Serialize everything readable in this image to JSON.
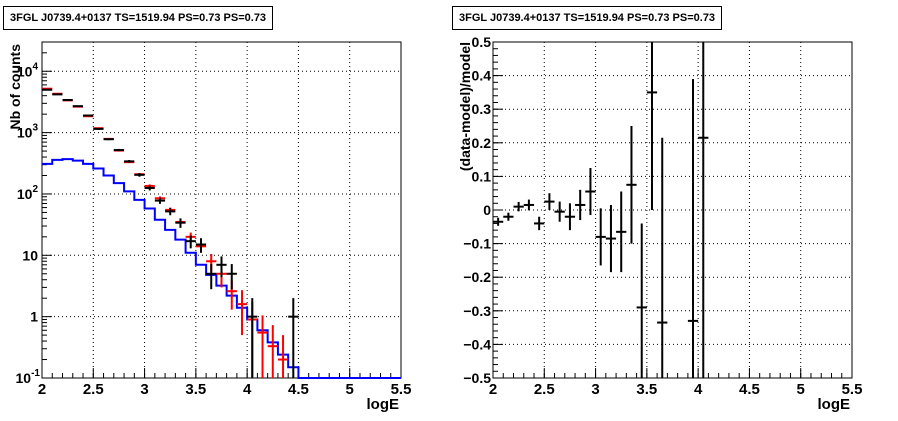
{
  "chart_data": [
    {
      "type": "histogram",
      "title": "3FGL J0739.4+0137 TS=1519.94 PS=0.73 PS=0.73",
      "xlabel": "logE",
      "ylabel": "Nb of counts",
      "xlim": [
        2,
        5.5
      ],
      "ylim": [
        0.1,
        30000
      ],
      "yscale": "log",
      "grid": true,
      "x_ticks": [
        "2",
        "2.5",
        "3",
        "3.5",
        "4",
        "4.5",
        "5",
        "5.5"
      ],
      "y_ticks": [
        {
          "v": 0.1,
          "base": "10",
          "exp": "-1"
        },
        {
          "v": 1,
          "base": "1",
          "exp": ""
        },
        {
          "v": 10,
          "base": "10",
          "exp": ""
        },
        {
          "v": 100,
          "base": "10",
          "exp": "2"
        },
        {
          "v": 1000,
          "base": "10",
          "exp": "3"
        },
        {
          "v": 10000,
          "base": "10",
          "exp": "4"
        }
      ],
      "series": [
        {
          "color": "#000000",
          "style": "points",
          "x": [
            2.05,
            2.15,
            2.25,
            2.35,
            2.45,
            2.55,
            2.65,
            2.75,
            2.85,
            2.95,
            3.05,
            3.15,
            3.25,
            3.35,
            3.45,
            3.55,
            3.65,
            3.75,
            3.85,
            4.05,
            4.45
          ],
          "y": [
            5000,
            4200,
            3400,
            2700,
            1900,
            1150,
            780,
            520,
            340,
            205,
            125,
            78,
            52,
            34,
            17,
            15,
            5,
            7,
            5,
            1,
            1
          ],
          "err": [
            80,
            70,
            65,
            55,
            45,
            35,
            28,
            22,
            18,
            14,
            11,
            9,
            7,
            6,
            4,
            4,
            2.2,
            2.6,
            2.2,
            1,
            1
          ]
        },
        {
          "color": "#0000ff",
          "style": "step",
          "x": [
            2.0,
            2.1,
            2.2,
            2.3,
            2.4,
            2.5,
            2.6,
            2.7,
            2.8,
            2.9,
            3.0,
            3.1,
            3.2,
            3.3,
            3.4,
            3.5,
            3.6,
            3.7,
            3.8,
            3.9,
            4.0,
            4.1,
            4.2,
            4.3,
            4.4,
            4.5,
            5.5
          ],
          "y": [
            310,
            360,
            370,
            350,
            310,
            260,
            200,
            150,
            110,
            80,
            58,
            38,
            26,
            18,
            11,
            7,
            4.8,
            3.2,
            2.2,
            1.4,
            0.9,
            0.6,
            0.38,
            0.24,
            0.15,
            0.1
          ]
        },
        {
          "color": "#ff0000",
          "style": "points",
          "x": [
            2.05,
            2.15,
            2.25,
            2.35,
            2.45,
            2.55,
            2.65,
            2.75,
            2.85,
            2.95,
            3.05,
            3.15,
            3.25,
            3.35,
            3.45,
            3.55,
            3.65,
            3.75,
            3.85,
            3.95,
            4.05,
            4.15,
            4.25,
            4.35
          ],
          "y": [
            5200,
            4300,
            3350,
            2650,
            1850,
            1180,
            790,
            510,
            330,
            210,
            135,
            85,
            55,
            35,
            20,
            14,
            8,
            5,
            2.6,
            1.6,
            0.9,
            0.55,
            0.33,
            0.2
          ],
          "err": [
            0,
            0,
            0,
            0,
            0,
            0,
            0,
            0,
            0,
            0,
            8,
            6,
            5,
            4,
            3.5,
            3,
            2.5,
            2,
            1.3,
            1.1,
            0.8,
            0.5,
            0.4,
            0.3
          ]
        }
      ]
    },
    {
      "type": "scatter",
      "title": "3FGL J0739.4+0137 TS=1519.94 PS=0.73 PS=0.73",
      "xlabel": "logE",
      "ylabel": "(data-model)/model",
      "xlim": [
        2,
        5.5
      ],
      "ylim": [
        -0.5,
        0.5
      ],
      "grid": true,
      "x_ticks": [
        "2",
        "2.5",
        "3",
        "3.5",
        "4",
        "4.5",
        "5",
        "5.5"
      ],
      "y_ticks": [
        "-0.5",
        "-0.4",
        "-0.3",
        "-0.2",
        "-0.1",
        "0",
        "0.1",
        "0.2",
        "0.3",
        "0.4",
        "0.5"
      ],
      "series": [
        {
          "color": "#000000",
          "x": [
            2.05,
            2.15,
            2.25,
            2.35,
            2.45,
            2.55,
            2.65,
            2.75,
            2.85,
            2.95,
            3.05,
            3.15,
            3.25,
            3.35,
            3.45,
            3.55,
            3.65,
            3.95,
            4.05
          ],
          "y": [
            -0.035,
            -0.02,
            0.01,
            0.015,
            -0.04,
            0.025,
            -0.005,
            -0.02,
            0.015,
            0.055,
            -0.08,
            -0.085,
            -0.065,
            0.075,
            -0.29,
            0.35,
            -0.335,
            -0.33,
            0.215
          ],
          "err": [
            0.012,
            0.012,
            0.014,
            0.016,
            0.02,
            0.025,
            0.03,
            0.04,
            0.045,
            0.07,
            0.085,
            0.1,
            0.12,
            0.175,
            0.25,
            0.35,
            0.55,
            0.72,
            0.9
          ]
        }
      ]
    }
  ]
}
